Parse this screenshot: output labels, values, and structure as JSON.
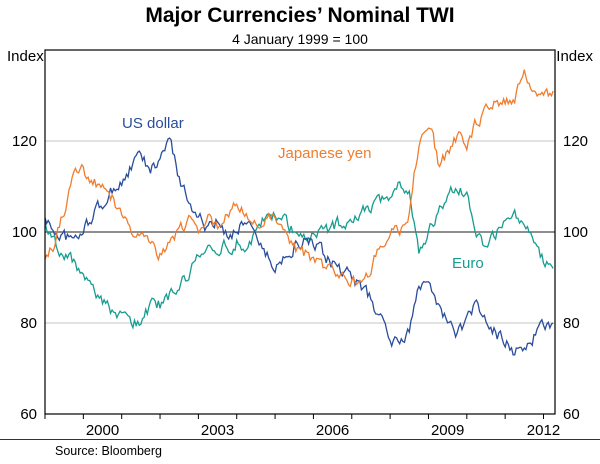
{
  "header": {
    "title": "Major Currencies’ Nominal TWI",
    "subtitle": "4 January 1999 = 100"
  },
  "axes": {
    "y_label_left": "Index",
    "y_label_right": "Index"
  },
  "footer": {
    "source": "Source: Bloomberg"
  },
  "chart_data": {
    "type": "line",
    "title": "Major Currencies’ Nominal TWI",
    "subtitle": "4 January 1999 = 100",
    "x_start": 1999,
    "x_step": 0.25,
    "x_range": [
      1999,
      2012.3
    ],
    "y_range": [
      60,
      140
    ],
    "y_ticks": [
      60,
      80,
      100,
      120
    ],
    "y_gridlines": [
      80,
      120
    ],
    "reference_line": 100,
    "x_tick_labels": [
      2000,
      2003,
      2006,
      2009,
      2012
    ],
    "grid": "horizontal-only",
    "legend_position": "inline-annotations",
    "series": [
      {
        "name": "US dollar",
        "color": "#2a4d9b",
        "values": [
          103,
          100,
          99,
          98,
          100,
          104,
          106,
          109,
          111,
          114,
          117,
          113,
          116,
          120,
          112,
          107,
          104,
          100,
          102,
          99,
          101,
          103,
          100,
          95,
          92,
          95,
          97,
          98,
          97,
          95,
          93,
          91,
          90,
          88,
          85,
          81,
          77,
          75,
          78,
          88,
          91,
          84,
          80,
          78,
          80,
          84,
          80,
          78,
          76,
          74,
          74,
          77,
          79,
          80
        ]
      },
      {
        "name": "Japanese yen",
        "color": "#f07d2e",
        "values": [
          93,
          97,
          105,
          112,
          113,
          111,
          109,
          107,
          104,
          101,
          100,
          96,
          95,
          97,
          100,
          102,
          101,
          103,
          102,
          105,
          106,
          103,
          102,
          104,
          102,
          99,
          97,
          95,
          94,
          92,
          91,
          90,
          89,
          88,
          92,
          97,
          101,
          99,
          104,
          120,
          125,
          116,
          117,
          121,
          119,
          124,
          127,
          130,
          128,
          130,
          134,
          131,
          129,
          131
        ]
      },
      {
        "name": "Euro",
        "color": "#169d8f",
        "values": [
          102,
          98,
          95,
          93,
          90,
          87,
          85,
          82,
          83,
          81,
          80,
          84,
          84,
          86,
          88,
          91,
          94,
          96,
          95,
          97,
          98,
          97,
          99,
          103,
          104,
          102,
          100,
          99,
          99,
          100,
          101,
          102,
          103,
          105,
          105,
          107,
          108,
          110,
          109,
          96,
          100,
          105,
          108,
          110,
          108,
          101,
          97,
          100,
          102,
          104,
          101,
          97,
          94,
          92
        ]
      }
    ]
  }
}
